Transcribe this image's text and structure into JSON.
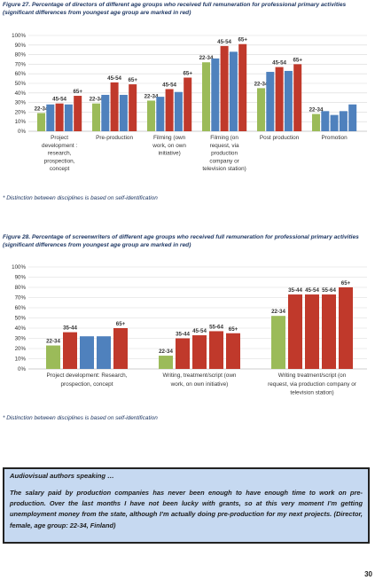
{
  "figures": [
    {
      "title": "Figure 27. Percentage of directors of different age groups who received full remuneration for professional primary activities (significant differences from youngest age group are marked in red)",
      "footnote": "* Distinction between disciplines is based on self-identification",
      "chart_data": {
        "type": "bar",
        "series_names": [
          "22-34",
          "35-44",
          "45-54",
          "55-64",
          "65+"
        ],
        "y_ticks": [
          "0%",
          "10%",
          "20%",
          "30%",
          "40%",
          "50%",
          "60%",
          "70%",
          "80%",
          "90%",
          "100%"
        ],
        "ylim": [
          0,
          100
        ],
        "grid": true,
        "colors": {
          "base": "#9bbb59",
          "normal": "#4f81bd",
          "significant": "#c0392b"
        },
        "groups": [
          {
            "label": [
              "Project",
              "development :",
              "research,",
              "prospection,",
              "concept"
            ],
            "values": [
              19,
              28,
              29,
              28,
              37
            ],
            "significant": [
              false,
              false,
              true,
              false,
              true
            ],
            "labels": [
              "22-34",
              "",
              "45-54",
              "",
              "65+"
            ]
          },
          {
            "label": [
              "Pre-production"
            ],
            "values": [
              29,
              38,
              51,
              38,
              49
            ],
            "significant": [
              false,
              false,
              true,
              false,
              true
            ],
            "labels": [
              "22-34",
              "",
              "45-54",
              "",
              "65+"
            ]
          },
          {
            "label": [
              "Filming (own",
              "work, on own",
              "initiative)"
            ],
            "values": [
              32,
              36,
              44,
              41,
              56
            ],
            "significant": [
              false,
              false,
              true,
              false,
              true
            ],
            "labels": [
              "22-34",
              "",
              "45-54",
              "",
              "65+"
            ]
          },
          {
            "label": [
              "Filming (on",
              "request, via",
              "production",
              "company or",
              "television station)"
            ],
            "values": [
              72,
              76,
              89,
              83,
              91
            ],
            "significant": [
              false,
              false,
              true,
              false,
              true
            ],
            "labels": [
              "22-34",
              "",
              "45-54",
              "",
              "65+"
            ]
          },
          {
            "label": [
              "Post production"
            ],
            "values": [
              45,
              62,
              67,
              63,
              70
            ],
            "significant": [
              false,
              false,
              true,
              false,
              true
            ],
            "labels": [
              "22-34",
              "",
              "45-54",
              "",
              "65+"
            ]
          },
          {
            "label": [
              "Promotion"
            ],
            "values": [
              18,
              21,
              17,
              21,
              28
            ],
            "significant": [
              false,
              false,
              false,
              false,
              false
            ],
            "labels": [
              "22-34",
              "",
              "",
              "",
              ""
            ]
          }
        ]
      }
    },
    {
      "title": "Figure 28. Percentage of screenwriters of different age groups who received full remuneration for professional primary activities (significant differences from youngest age group are marked in red)",
      "footnote": "* Distinction between disciplines is based on self-identification",
      "chart_data": {
        "type": "bar",
        "series_names": [
          "22-34",
          "35-44",
          "45-54",
          "55-64",
          "65+"
        ],
        "y_ticks": [
          "0%",
          "10%",
          "20%",
          "30%",
          "40%",
          "50%",
          "60%",
          "70%",
          "80%",
          "90%",
          "100%"
        ],
        "ylim": [
          0,
          100
        ],
        "grid": true,
        "colors": {
          "base": "#9bbb59",
          "normal": "#4f81bd",
          "significant": "#c0392b"
        },
        "groups": [
          {
            "label": [
              "Project development: Research,",
              "prospection, concept"
            ],
            "values": [
              23,
              36,
              32,
              32,
              40
            ],
            "significant": [
              false,
              true,
              false,
              false,
              true
            ],
            "labels": [
              "22-34",
              "35-44",
              "",
              "",
              "65+"
            ]
          },
          {
            "label": [
              "Writing, treatment/script (own",
              "work, on own initiative)"
            ],
            "values": [
              13,
              30,
              33,
              37,
              35
            ],
            "significant": [
              false,
              true,
              true,
              true,
              true
            ],
            "labels": [
              "22-34",
              "35-44",
              "45-54",
              "55-64",
              "65+"
            ]
          },
          {
            "label": [
              "Writing treatment/script (on",
              "request, via production company or",
              "television station)"
            ],
            "values": [
              52,
              73,
              73,
              73,
              80
            ],
            "significant": [
              false,
              true,
              true,
              true,
              true
            ],
            "labels": [
              "22-34",
              "35-44",
              "45-54",
              "55-64",
              "65+"
            ]
          }
        ]
      }
    }
  ],
  "quote": {
    "heading": "Audiovisual authors speaking …",
    "text": "The salary paid by production companies has never been enough to have enough time to work on pre-production.  Over the last months I have not been lucky with grants, so at this very moment I’m getting unemployment money from the state, although I’m actually doing pre-production for my next projects. (Director, female, age group: 22-34, Finland)"
  },
  "page_number": "30"
}
